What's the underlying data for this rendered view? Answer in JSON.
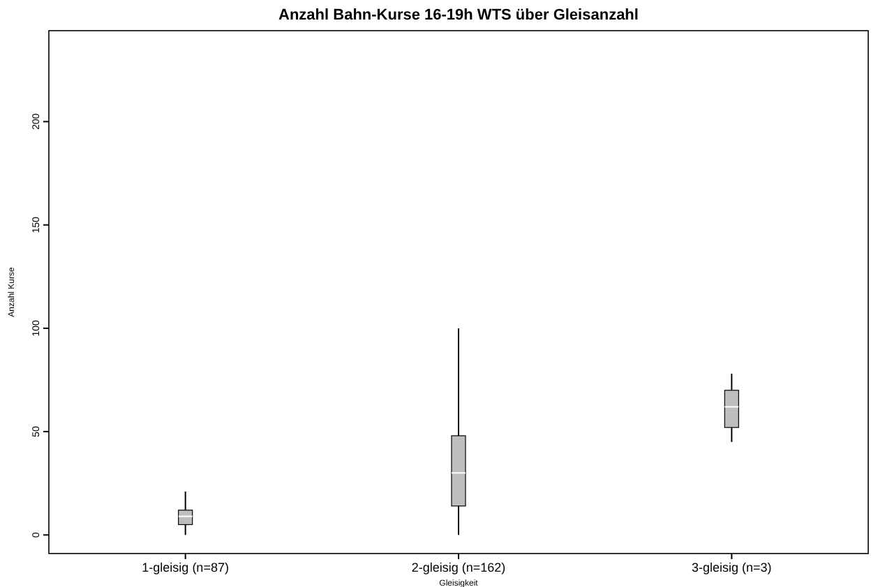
{
  "chart_data": {
    "type": "box",
    "title": "Anzahl Bahn-Kurse 16-19h WTS über Gleisanzahl",
    "xlabel": "Gleisigkeit",
    "ylabel": "Anzahl Kurse",
    "categories": [
      "1-gleisig (n=87)",
      "2-gleisig (n=162)",
      "3-gleisig (n=3)"
    ],
    "ylim": [
      -9,
      244
    ],
    "yticks": [
      0,
      50,
      100,
      150,
      200
    ],
    "grid": false,
    "boxes": [
      {
        "low": 0,
        "q1": 5,
        "median": 9,
        "q3": 12,
        "high": 21
      },
      {
        "low": 0,
        "q1": 14,
        "median": 30,
        "q3": 48,
        "high": 100
      },
      {
        "low": 45,
        "q1": 52,
        "median": 62,
        "q3": 70,
        "high": 78
      }
    ]
  }
}
